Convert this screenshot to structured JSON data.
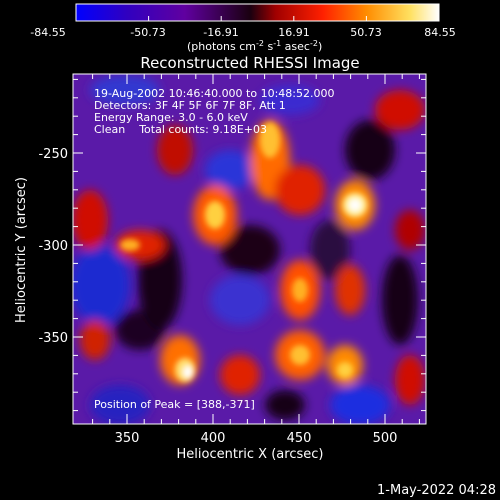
{
  "colorbar": {
    "ticks": [
      "-84.55",
      "-50.73",
      "-16.91",
      "16.91",
      "50.73",
      "84.55"
    ],
    "unit_main": "(photons cm",
    "unit_sup1": "-2",
    "unit_s": " s",
    "unit_sup2": "-1",
    "unit_asec": " asec",
    "unit_sup3": "-2",
    "unit_close": ")",
    "colors": [
      "#0000ff",
      "#3000c0",
      "#6000a0",
      "#1a0010",
      "#c00000",
      "#ff4000",
      "#ff9a00",
      "#ffe060",
      "#ffffff"
    ]
  },
  "title": "Reconstructed RHESSI Image",
  "annotations": {
    "line1": "19-Aug-2002 10:46:40.000 to 10:48:52.000",
    "line2": "Detectors: 3F 4F 5F 6F 7F 8F, Att 1",
    "line3": "Energy Range: 3.0 - 6.0 keV",
    "line4": "Clean    Total counts: 9.18E+03",
    "peak": "Position of Peak = [388,-371]"
  },
  "axes": {
    "xlabel": "Heliocentric X (arcsec)",
    "ylabel": "Heliocentric Y (arcsec)",
    "xticks": [
      "350",
      "400",
      "450",
      "500"
    ],
    "yticks": [
      "-250",
      "-300",
      "-350"
    ]
  },
  "footer": "1-May-2022 04:28"
}
